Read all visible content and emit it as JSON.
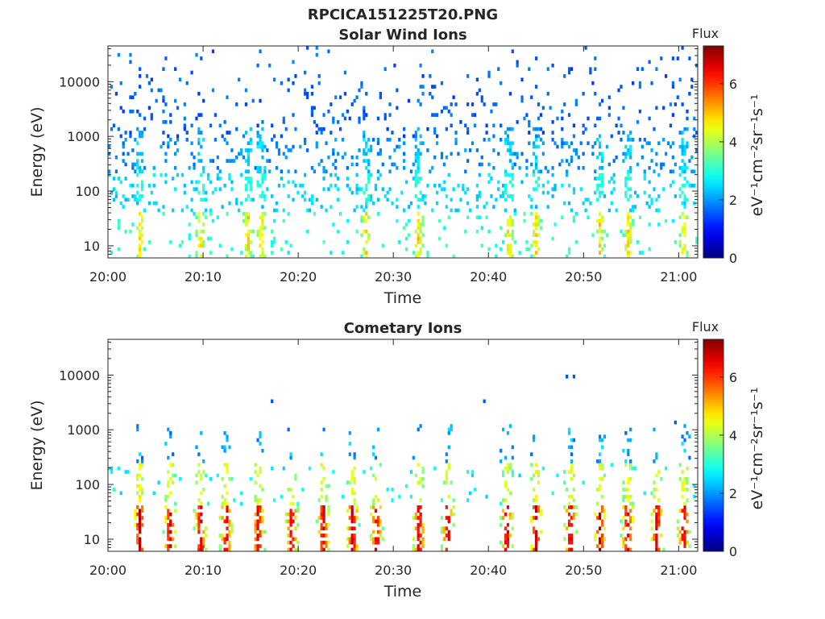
{
  "figure": {
    "title": "RPCICA151225T20.PNG"
  },
  "chart_data": [
    {
      "type": "heatmap",
      "title": "Solar Wind Ions",
      "xlabel": "Time",
      "ylabel": "Energy (eV)",
      "x_range": [
        "20:00",
        "21:02"
      ],
      "x_ticks": [
        "20:00",
        "20:10",
        "20:20",
        "20:30",
        "20:40",
        "20:50",
        "21:00"
      ],
      "y_scale": "log",
      "y_range": [
        6,
        45000
      ],
      "y_ticks": [
        "10",
        "100",
        "1000",
        "10000"
      ],
      "colorbar": {
        "title": "Flux",
        "label": "eV⁻¹cm⁻²sr⁻¹s⁻¹",
        "range": [
          0,
          7.3
        ],
        "ticks": [
          "0",
          "2",
          "4",
          "6"
        ],
        "colormap": "jet"
      },
      "pattern": {
        "sparse_high_energy_blue": true,
        "low_energy_spikes_minutes": [
          3.3,
          9.6,
          14.6,
          16,
          27,
          32.5,
          42,
          44.9,
          51.6,
          54.6,
          60.4
        ]
      }
    },
    {
      "type": "heatmap",
      "title": "Cometary Ions",
      "xlabel": "Time",
      "ylabel": "Energy (eV)",
      "x_range": [
        "20:00",
        "21:02"
      ],
      "x_ticks": [
        "20:00",
        "20:10",
        "20:20",
        "20:30",
        "20:40",
        "20:50",
        "21:00"
      ],
      "y_scale": "log",
      "y_range": [
        6,
        45000
      ],
      "y_ticks": [
        "10",
        "100",
        "1000",
        "10000"
      ],
      "colorbar": {
        "title": "Flux",
        "label": "eV⁻¹cm⁻²sr⁻¹s⁻¹",
        "range": [
          0,
          7.3
        ],
        "ticks": [
          "0",
          "2",
          "4",
          "6"
        ],
        "colormap": "jet"
      },
      "pattern": {
        "bursts_minutes": [
          3.2,
          6.4,
          9.6,
          12.3,
          15.7,
          19.2,
          22.5,
          25.6,
          28.1,
          32.6,
          35.6,
          41.8,
          44.9,
          48.5,
          51.6,
          54.5,
          57.6,
          60.4
        ]
      }
    }
  ]
}
